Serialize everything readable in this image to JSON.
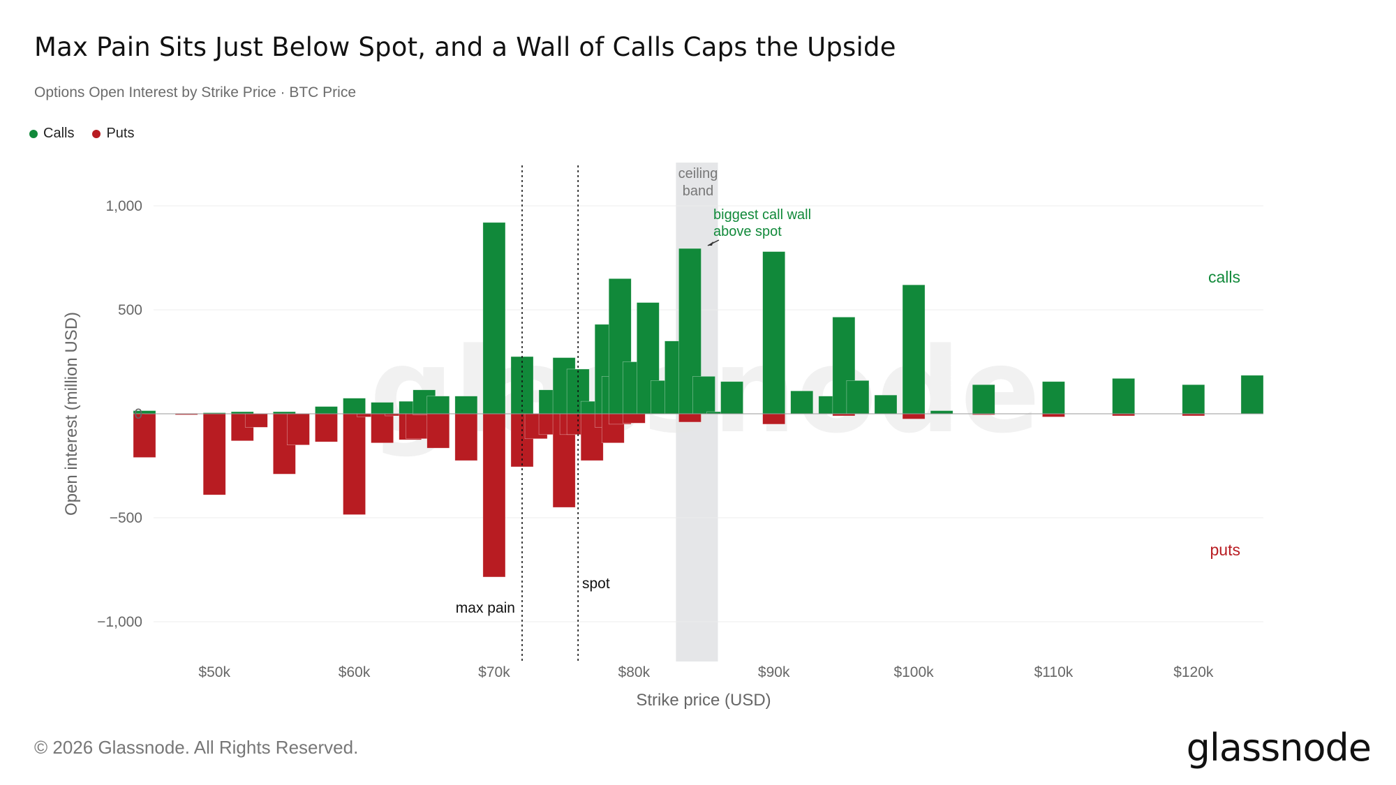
{
  "title": "Max Pain Sits Just Below Spot, and a Wall of Calls Caps the Upside",
  "subtitle": "Options Open Interest by Strike Price · BTC Price",
  "legend": [
    {
      "label": "Calls",
      "color": "#11893a"
    },
    {
      "label": "Puts",
      "color": "#b81c22"
    }
  ],
  "footer": "© 2026 Glassnode. All Rights Reserved.",
  "logo": "glassnode",
  "watermark": "glassnode",
  "colors": {
    "calls": "#11893a",
    "puts": "#b81c22",
    "band": "#e5e6e8"
  },
  "annotations": {
    "ceiling_band_line1": "ceiling",
    "ceiling_band_line2": "band",
    "call_wall_line1": "biggest call wall",
    "call_wall_line2": "above spot",
    "calls_label": "calls",
    "puts_label": "puts",
    "max_pain": "max pain",
    "spot": "spot"
  },
  "chart_data": {
    "type": "bar",
    "xlabel": "Strike price (USD)",
    "ylabel": "Open interest (million USD)",
    "xlim": [
      45000,
      125000
    ],
    "ylim": [
      -1200,
      1000
    ],
    "y_ticks": [
      1000,
      500,
      0,
      -500,
      -1000
    ],
    "y_tick_labels": [
      "1,000",
      "500",
      "0",
      "−500",
      "−1,000"
    ],
    "x_ticks": [
      50000,
      60000,
      70000,
      80000,
      90000,
      100000,
      110000,
      120000
    ],
    "x_tick_labels": [
      "$50k",
      "$60k",
      "$70k",
      "$80k",
      "$90k",
      "$100k",
      "$110k",
      "$120k"
    ],
    "bar_width_usd": 1600,
    "max_pain": 72000,
    "spot": 76000,
    "ceiling_band": [
      83000,
      86000
    ],
    "gridlines": true,
    "legend_position": "top-left",
    "strikes": [
      45000,
      48000,
      50000,
      52000,
      53000,
      55000,
      56000,
      58000,
      60000,
      61000,
      62000,
      63000,
      64000,
      64500,
      65000,
      66000,
      68000,
      70000,
      72000,
      73000,
      74000,
      75000,
      75500,
      76000,
      77000,
      78000,
      78500,
      79000,
      80000,
      81000,
      82000,
      83000,
      84000,
      85000,
      86000,
      87000,
      88000,
      90000,
      92000,
      94000,
      95000,
      96000,
      98000,
      100000,
      102000,
      105000,
      110000,
      115000,
      120000,
      125000
    ],
    "series": [
      {
        "name": "Calls",
        "values": [
          15,
          0,
          5,
          10,
          0,
          10,
          0,
          35,
          75,
          0,
          55,
          0,
          60,
          0,
          115,
          85,
          85,
          920,
          275,
          0,
          115,
          270,
          0,
          215,
          60,
          430,
          180,
          650,
          250,
          535,
          160,
          350,
          795,
          180,
          10,
          155,
          0,
          780,
          110,
          85,
          465,
          160,
          90,
          620,
          15,
          140,
          155,
          170,
          140,
          185
        ]
      },
      {
        "name": "Puts",
        "values": [
          -210,
          -5,
          -390,
          -130,
          -65,
          -290,
          -150,
          -135,
          -485,
          -15,
          -140,
          -10,
          -125,
          -120,
          -5,
          -165,
          -225,
          -785,
          -255,
          -120,
          -100,
          -450,
          -100,
          -100,
          -225,
          -65,
          -140,
          -50,
          -45,
          0,
          0,
          0,
          -40,
          0,
          0,
          0,
          0,
          -50,
          0,
          0,
          -10,
          0,
          0,
          -25,
          0,
          -5,
          -15,
          -10,
          -10,
          0
        ]
      }
    ]
  }
}
